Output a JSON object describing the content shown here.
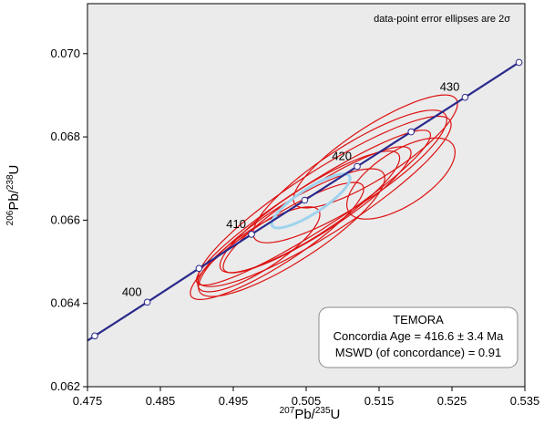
{
  "chart_data": {
    "type": "scatter",
    "subtype": "concordia-diagram",
    "xlabel": {
      "sup1": "207",
      "main1": "Pb/",
      "sup2": "235",
      "main2": "U"
    },
    "ylabel": {
      "sup1": "206",
      "main1": "Pb/",
      "sup2": "238",
      "main2": "U"
    },
    "xlim": [
      0.475,
      0.535
    ],
    "ylim": [
      0.062,
      0.0712
    ],
    "x_ticks": [
      "0.475",
      "0.485",
      "0.495",
      "0.505",
      "0.515",
      "0.525",
      "0.535"
    ],
    "y_ticks": [
      "0.062",
      "0.064",
      "0.066",
      "0.068",
      "0.070"
    ],
    "grid": false,
    "background_color": "#ebebeb",
    "concordia_color": "#2a2a8c",
    "ellipse_color": "#dd1111",
    "concordia_ellipse_color": "#9fd3ee",
    "note": "data-point error ellipses are 2σ",
    "concordia_age_markers": [
      {
        "x": 0.476,
        "y": 0.06322,
        "label": ""
      },
      {
        "x": 0.4832,
        "y": 0.06403,
        "label": "400"
      },
      {
        "x": 0.4903,
        "y": 0.06484,
        "label": ""
      },
      {
        "x": 0.4975,
        "y": 0.06566,
        "label": "410"
      },
      {
        "x": 0.5048,
        "y": 0.06648,
        "label": ""
      },
      {
        "x": 0.512,
        "y": 0.06729,
        "label": "420"
      },
      {
        "x": 0.5194,
        "y": 0.06812,
        "label": ""
      },
      {
        "x": 0.5268,
        "y": 0.06895,
        "label": "430"
      },
      {
        "x": 0.5342,
        "y": 0.06979,
        "label": ""
      }
    ],
    "ellipses": [
      {
        "cx": 0.5075,
        "cy": 0.06645,
        "rx": 0.0205,
        "ry": 0.00075,
        "angle": 21
      },
      {
        "cx": 0.5145,
        "cy": 0.06765,
        "rx": 0.0132,
        "ry": 0.00062,
        "angle": 21
      },
      {
        "cx": 0.511,
        "cy": 0.06705,
        "rx": 0.0156,
        "ry": 0.0007,
        "angle": 21
      },
      {
        "cx": 0.5055,
        "cy": 0.0662,
        "rx": 0.0145,
        "ry": 0.00058,
        "angle": 21
      },
      {
        "cx": 0.5065,
        "cy": 0.06625,
        "rx": 0.0152,
        "ry": 0.00055,
        "angle": 21
      },
      {
        "cx": 0.4985,
        "cy": 0.0653,
        "rx": 0.0098,
        "ry": 0.0005,
        "angle": 21
      },
      {
        "cx": 0.501,
        "cy": 0.0655,
        "rx": 0.014,
        "ry": 0.00055,
        "angle": 21
      },
      {
        "cx": 0.503,
        "cy": 0.0657,
        "rx": 0.015,
        "ry": 0.00068,
        "angle": 21
      },
      {
        "cx": 0.518,
        "cy": 0.067,
        "rx": 0.0085,
        "ry": 0.00065,
        "angle": 21
      },
      {
        "cx": 0.506,
        "cy": 0.0663,
        "rx": 0.019,
        "ry": 0.00055,
        "angle": 21
      }
    ],
    "concordia_ellipse": {
      "cx": 0.50565,
      "cy": 0.06646,
      "rx": 0.0063,
      "ry": 0.0003,
      "angle": 21
    },
    "result_box": {
      "title": "TEMORA",
      "age_line": "Concordia Age = 416.6 ± 3.4 Ma",
      "mswd_line": "MSWD (of concordance) = 0.91"
    }
  }
}
